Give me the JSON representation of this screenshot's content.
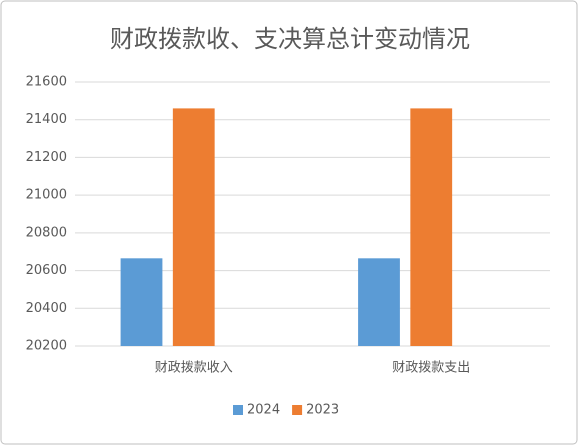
{
  "chart_data": {
    "type": "bar",
    "title": "财政拨款收、支决算总计变动情况",
    "categories": [
      "财政拨款收入",
      "财政拨款支出"
    ],
    "series": [
      {
        "name": "2024",
        "color": "#5b9bd5",
        "values": [
          20665,
          20665
        ]
      },
      {
        "name": "2023",
        "color": "#ed7d31",
        "values": [
          21460,
          21460
        ]
      }
    ],
    "ylim": [
      20200,
      21600
    ],
    "yticks": [
      20200,
      20400,
      20600,
      20800,
      21000,
      21200,
      21400,
      21600
    ],
    "grid": true,
    "legend": "bottom"
  }
}
